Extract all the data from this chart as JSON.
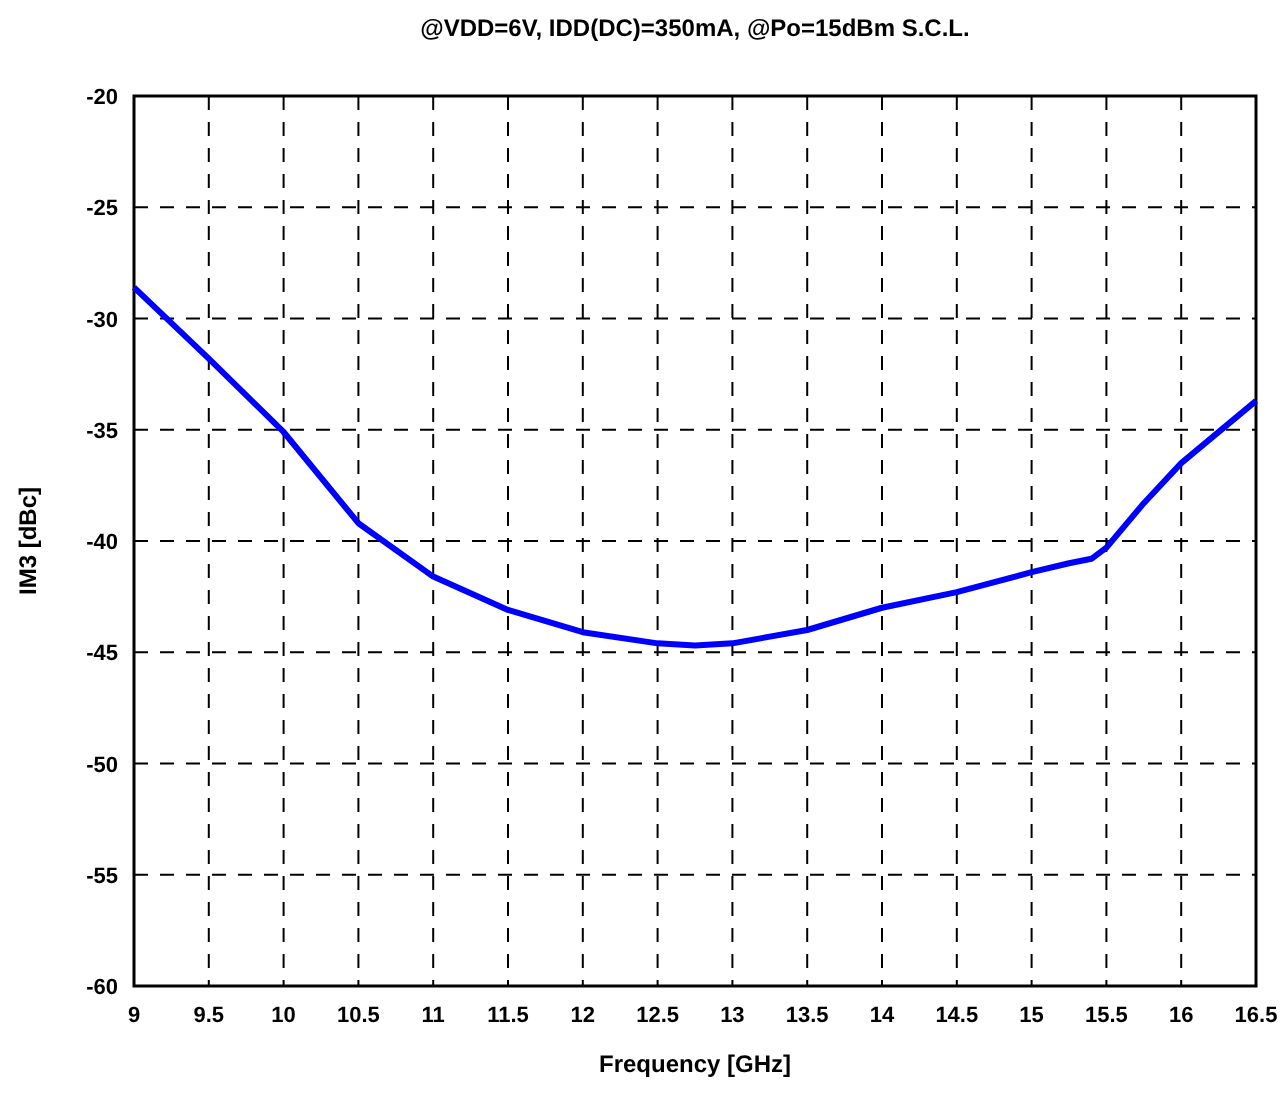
{
  "chart_data": {
    "type": "line",
    "title": "@VDD=6V, IDD(DC)=350mA, @Po=15dBm S.C.L.",
    "xlabel": "Frequency  [GHz]",
    "ylabel": "IM3  [dBc]",
    "xlim": [
      9,
      16.5
    ],
    "xticks": [
      9,
      9.5,
      10,
      10.5,
      11,
      11.5,
      12,
      12.5,
      13,
      13.5,
      14,
      14.5,
      15,
      15.5,
      16,
      16.5
    ],
    "ylim": [
      -60,
      -20
    ],
    "yticks": [
      -60,
      -55,
      -50,
      -45,
      -40,
      -35,
      -30,
      -25,
      -20
    ],
    "grid": true,
    "line_style": "solid",
    "series": [
      {
        "color": "#0000ff",
        "x": [
          9,
          9.5,
          10,
          10.5,
          11,
          11.5,
          12,
          12.5,
          12.75,
          13,
          13.5,
          14,
          14.5,
          15,
          15.25,
          15.4,
          15.5,
          15.75,
          16,
          16.5
        ],
        "values": [
          -28.6,
          -31.8,
          -35.1,
          -39.2,
          -41.6,
          -43.1,
          -44.1,
          -44.6,
          -44.7,
          -44.6,
          -44.0,
          -43.0,
          -42.3,
          -41.4,
          -41.0,
          -40.8,
          -40.3,
          -38.3,
          -36.5,
          -33.7
        ]
      }
    ]
  }
}
